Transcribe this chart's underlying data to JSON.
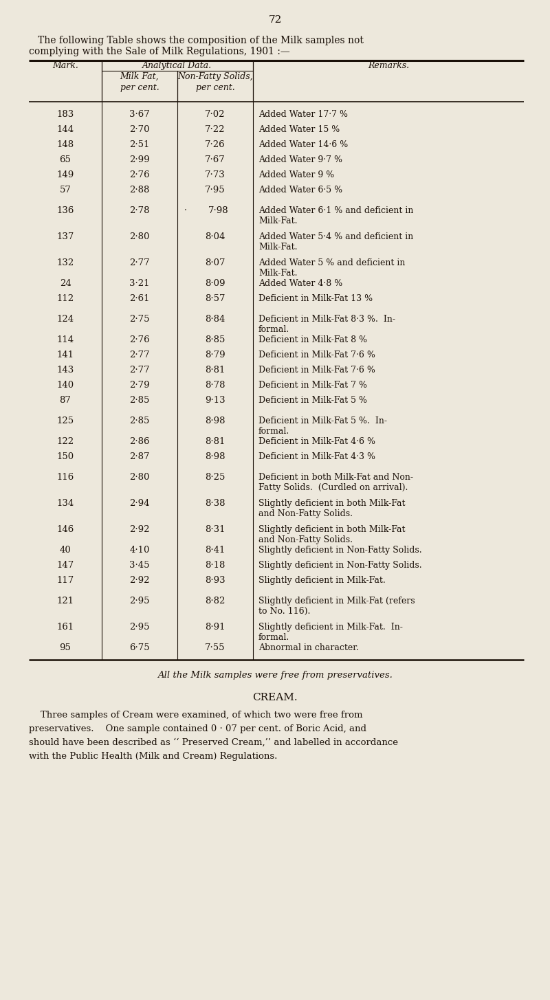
{
  "page_number": "72",
  "intro_line1": "The following Table shows the composition of the Milk samples not",
  "intro_line2": "complying with the Sale of Milk Regulations, 1901 :—",
  "analytical_header": "Analytical Data.",
  "col_header_mark": "Mark.",
  "col_header_fat": "Milk Fat,\nper cent.",
  "col_header_nfs": "Non-Fatty Solids,\nper cent.",
  "col_header_remarks": "Remarks.",
  "rows": [
    [
      "183",
      "3·67",
      "7·02",
      "Added Water 17·7 %",
      1
    ],
    [
      "144",
      "2·70",
      "7·22",
      "Added Water 15 %",
      1
    ],
    [
      "148",
      "2·51",
      "7·26",
      "Added Water 14·6 %",
      1
    ],
    [
      "65",
      "2·99",
      "7·67",
      "Added Water 9·7 %",
      1
    ],
    [
      "149",
      "2·76",
      "7·73",
      "Added Water 9 %",
      1
    ],
    [
      "57",
      "2·88",
      "7·95",
      "Added Water 6·5 %",
      1
    ],
    [
      "136",
      "2·78",
      "7·98",
      "Added Water 6·1 % and deficient in\nMilk-Fat.",
      2
    ],
    [
      "137",
      "2·80",
      "8·04",
      "Added Water 5·4 % and deficient in\nMilk-Fat.",
      2
    ],
    [
      "132",
      "2·77",
      "8·07",
      "Added Water 5 % and deficient in\nMilk-Fat.",
      2
    ],
    [
      "24",
      "3·21",
      "8·09",
      "Added Water 4·8 %",
      1
    ],
    [
      "112",
      "2·61",
      "8·57",
      "Deficient in Milk-Fat 13 %",
      1
    ],
    [
      "124",
      "2·75",
      "8·84",
      "Deficient in Milk-Fat 8·3 %.  In-\nformal.",
      2
    ],
    [
      "114",
      "2·76",
      "8·85",
      "Deficient in Milk-Fat 8 %",
      1
    ],
    [
      "141",
      "2·77",
      "8·79",
      "Deficient in Milk-Fat 7·6 %",
      1
    ],
    [
      "143",
      "2·77",
      "8·81",
      "Deficient in Milk-Fat 7·6 %",
      1
    ],
    [
      "140",
      "2·79",
      "8·78",
      "Deficient in Milk-Fat 7 %",
      1
    ],
    [
      "87",
      "2·85",
      "9·13",
      "Deficient in Milk-Fat 5 %",
      1
    ],
    [
      "125",
      "2·85",
      "8·98",
      "Deficient in Milk-Fat 5 %.  In-\nformal.",
      2
    ],
    [
      "122",
      "2·86",
      "8·81",
      "Deficient in Milk-Fat 4·6 %",
      1
    ],
    [
      "150",
      "2·87",
      "8·98",
      "Deficient in Milk-Fat 4·3 %",
      1
    ],
    [
      "116",
      "2·80",
      "8·25",
      "Deficient in both Milk-Fat and Non-\nFatty Solids.  (Curdled on arrival).",
      2
    ],
    [
      "134",
      "2·94",
      "8·38",
      "Slightly deficient in both Milk-Fat\nand Non-Fatty Solids.",
      2
    ],
    [
      "146",
      "2·92",
      "8·31",
      "Slightly deficient in both Milk-Fat\nand Non-Fatty Solids.",
      2
    ],
    [
      "40",
      "4·10",
      "8·41",
      "Slightly deficient in Non-Fatty Solids.",
      1
    ],
    [
      "147",
      "3·45",
      "8·18",
      "Slightly deficient in Non-Fatty Solids.",
      1
    ],
    [
      "117",
      "2·92",
      "8·93",
      "Slightly deficient in Milk-Fat.",
      1
    ],
    [
      "121",
      "2·95",
      "8·82",
      "Slightly deficient in Milk-Fat (refers\nto No. 116).",
      2
    ],
    [
      "161",
      "2·95",
      "8·91",
      "Slightly deficient in Milk-Fat.  In-\nformal.",
      2
    ],
    [
      "95",
      "6·75",
      "7·55",
      "Abnormal in character.",
      1
    ]
  ],
  "footnote": "All the Milk samples were free from preservatives.",
  "cream_header": "CREAM.",
  "cream_para": [
    "    Three samples of Cream were examined, of which two were free from",
    "preservatives.    One sample contained 0 · 07 per cent. of Boric Acid, and",
    "should have been described as ‘‘ Preserved Cream,’’ and labelled in accordance",
    "with the Public Health (Milk and Cream) Regulations."
  ],
  "bg_color": "#ede8dc",
  "text_color": "#1a1008",
  "line_color": "#1a1008",
  "col0": 42,
  "col1": 148,
  "col2": 258,
  "col3": 368,
  "col4": 762
}
